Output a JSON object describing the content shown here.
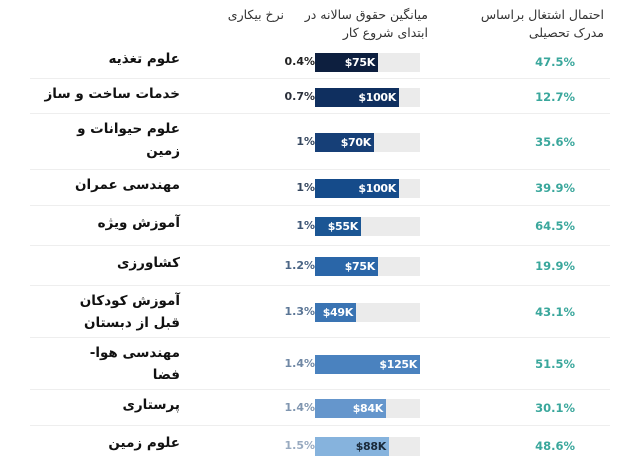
{
  "headers": {
    "probability": "احتمال اشتغال براساس مدرک تحصیلی",
    "salary": "میانگین حقوق سالانه در ابتدای شروع کار",
    "unemployment": "نرخ بیکاری"
  },
  "rows": [
    {
      "major": "علوم تغذیه",
      "unemployment": "0.4%",
      "salary": "$75K",
      "probability": "47.5%"
    },
    {
      "major": "خدمات ساخت و ساز",
      "unemployment": "0.7%",
      "salary": "$100K",
      "probability": "12.7%"
    },
    {
      "major": "علوم حیوانات و زمین",
      "unemployment": "1%",
      "salary": "$70K",
      "probability": "35.6%"
    },
    {
      "major": "مهندسی عمران",
      "unemployment": "1%",
      "salary": "$100K",
      "probability": "39.9%"
    },
    {
      "major": "آموزش ویژه",
      "unemployment": "1%",
      "salary": "$55K",
      "probability": "64.5%"
    },
    {
      "major": "کشاورزی",
      "unemployment": "1.2%",
      "salary": "$75K",
      "probability": "19.9%"
    },
    {
      "major": "آموزش کودکان قبل از دبستان",
      "unemployment": "1.3%",
      "salary": "$49K",
      "probability": "43.1%"
    },
    {
      "major": "مهندسی هوا-فضا",
      "unemployment": "1.4%",
      "salary": "$125K",
      "probability": "51.5%"
    },
    {
      "major": "پرستاری",
      "unemployment": "1.4%",
      "salary": "$84K",
      "probability": "30.1%"
    },
    {
      "major": "علوم زمین",
      "unemployment": "1.5%",
      "salary": "$88K",
      "probability": "48.6%"
    }
  ],
  "colors": {
    "bars": [
      "#0d1f3f",
      "#0f2f5f",
      "#163f77",
      "#154b8a",
      "#1b5694",
      "#2a66a8",
      "#3a74b3",
      "#4a82bf",
      "#6596cc",
      "#86b3dd"
    ],
    "unemployment_text": [
      "#222222",
      "#2a2f3a",
      "#34465e",
      "#34465e",
      "#3d5575",
      "#4a6585",
      "#5a7595",
      "#7088a5",
      "#8096b0",
      "#98aac0"
    ],
    "probability_text": "#3aa79c",
    "track": "#ebebeb"
  },
  "chart_data": {
    "type": "table",
    "title": "",
    "columns": [
      "رشته",
      "نرخ بیکاری",
      "میانگین حقوق سالانه در ابتدای شروع کار",
      "احتمال اشتغال براساس مدرک تحصیلی"
    ],
    "categories": [
      "علوم تغذیه",
      "خدمات ساخت و ساز",
      "علوم حیوانات و زمین",
      "مهندسی عمران",
      "آموزش ویژه",
      "کشاورزی",
      "آموزش کودکان قبل از دبستان",
      "مهندسی هوا-فضا",
      "پرستاری",
      "علوم زمین"
    ],
    "series": [
      {
        "name": "نرخ بیکاری (%)",
        "values": [
          0.4,
          0.7,
          1,
          1,
          1,
          1.2,
          1.3,
          1.4,
          1.4,
          1.5
        ]
      },
      {
        "name": "میانگین حقوق سالانه (K$)",
        "type": "bar",
        "values": [
          75,
          100,
          70,
          100,
          55,
          75,
          49,
          125,
          84,
          88
        ],
        "xlim": [
          0,
          125
        ]
      },
      {
        "name": "احتمال اشتغال (%)",
        "values": [
          47.5,
          12.7,
          35.6,
          39.9,
          64.5,
          19.9,
          43.1,
          51.5,
          30.1,
          48.6
        ]
      }
    ]
  }
}
